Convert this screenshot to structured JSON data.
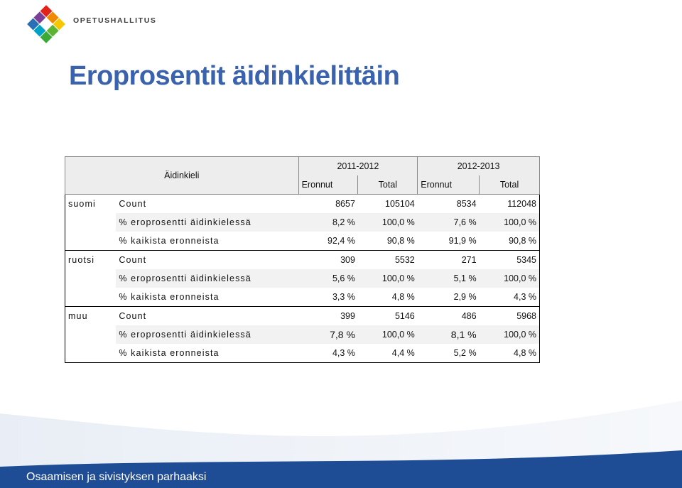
{
  "header": {
    "brand": "OPETUSHALLITUS",
    "title": "Eroprosentit äidinkielittäin"
  },
  "table": {
    "corner_label": "Äidinkieli",
    "periods": [
      "2011-2012",
      "2012-2013"
    ],
    "subheaders": [
      "Eronnut",
      "Total",
      "Eronnut",
      "Total"
    ],
    "groups": [
      {
        "name": "suomi",
        "rows": [
          {
            "label": "Count",
            "values": [
              "8657",
              "105104",
              "8534",
              "112048"
            ]
          },
          {
            "label": "% eroprosentti äidinkielessä",
            "values": [
              "8,2 %",
              "100,0 %",
              "7,6 %",
              "100,0 %"
            ]
          },
          {
            "label": "% kaikista eronneista",
            "values": [
              "92,4 %",
              "90,8 %",
              "91,9 %",
              "90,8 %"
            ]
          }
        ]
      },
      {
        "name": "ruotsi",
        "rows": [
          {
            "label": "Count",
            "values": [
              "309",
              "5532",
              "271",
              "5345"
            ]
          },
          {
            "label": "% eroprosentti äidinkielessä",
            "values": [
              "5,6 %",
              "100,0 %",
              "5,1 %",
              "100,0 %"
            ]
          },
          {
            "label": "% kaikista eronneista",
            "values": [
              "3,3 %",
              "4,8 %",
              "2,9 %",
              "4,3 %"
            ]
          }
        ]
      },
      {
        "name": "muu",
        "rows": [
          {
            "label": "Count",
            "values": [
              "399",
              "5146",
              "486",
              "5968"
            ]
          },
          {
            "label": "% eroprosentti äidinkielessä",
            "values": [
              "7,8 %",
              "100,0 %",
              "8,1 %",
              "100,0 %"
            ]
          },
          {
            "label": "% kaikista eronneista",
            "values": [
              "4,3 %",
              "4,4 %",
              "5,2 %",
              "4,8 %"
            ]
          }
        ]
      }
    ]
  },
  "footer": {
    "text": "Osaamisen ja sivistyksen parhaaksi",
    "color": "#1e4d96"
  },
  "logo": {
    "icon": "diamond-logo-icon",
    "colors": [
      "#e2231a",
      "#f7a800",
      "#5db332",
      "#2a6fb6",
      "#7b3f98",
      "#00a3c4"
    ]
  }
}
